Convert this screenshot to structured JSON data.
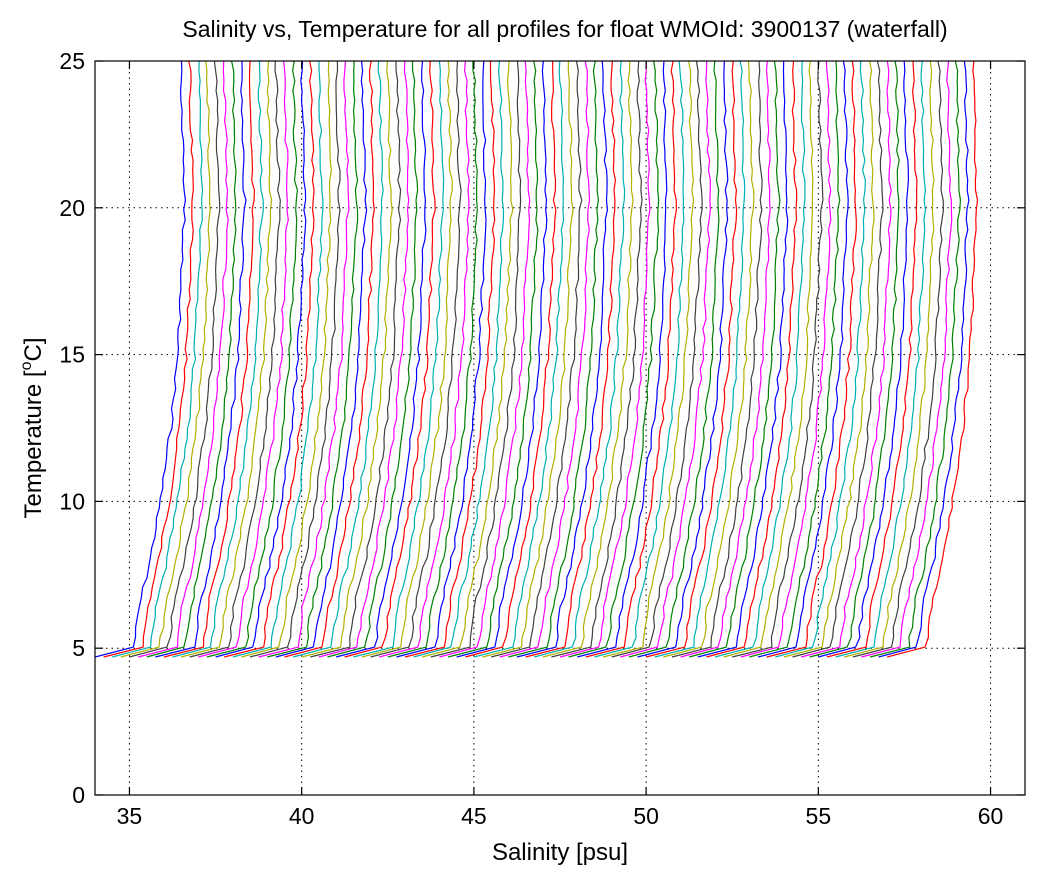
{
  "chart_data": {
    "type": "line",
    "title": "Salinity vs, Temperature for all profiles for float WMOId: 3900137 (waterfall)",
    "xlabel": "Salinity [psu]",
    "ylabel_main": "Temperature [",
    "ylabel_sup": "o",
    "ylabel_end": "C]",
    "xlim": [
      34,
      61
    ],
    "ylim": [
      0,
      25
    ],
    "xticks": [
      35,
      40,
      45,
      50,
      55,
      60
    ],
    "yticks": [
      0,
      5,
      10,
      15,
      20,
      25
    ],
    "grid": true,
    "waterfall": {
      "profile_count": 93,
      "offset_psu": 0.25,
      "base_profile": {
        "salinity": [
          34.0,
          35.05,
          35.15,
          35.3,
          35.6,
          35.9,
          36.2,
          36.4,
          36.5,
          36.6,
          36.55,
          36.5
        ],
        "temperature": [
          4.7,
          4.75,
          5.2,
          6.5,
          8.0,
          10.0,
          12.5,
          15.0,
          17.5,
          20.0,
          22.5,
          25.0
        ]
      }
    },
    "series_colors": [
      "#0000ff",
      "#ff0000",
      "#00b0b0",
      "#b0b000",
      "#404040",
      "#ff00ff",
      "#008000"
    ]
  }
}
